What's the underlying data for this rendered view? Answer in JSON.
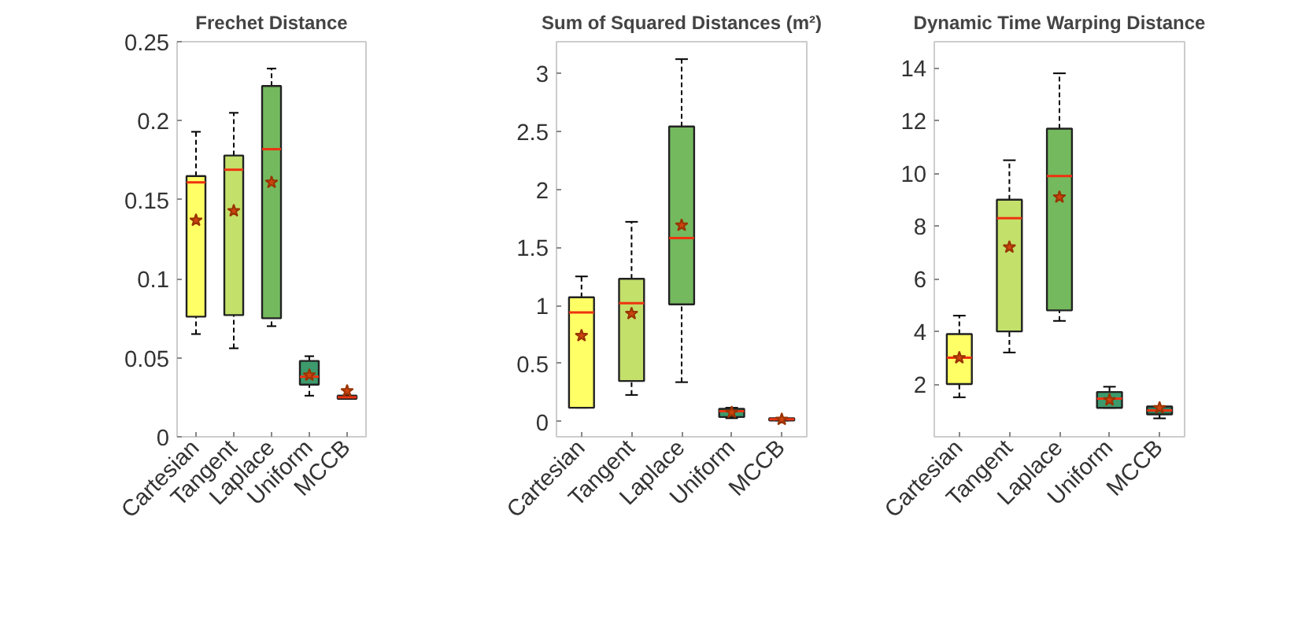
{
  "chart_data": [
    {
      "type": "box",
      "title": "Frechet Distance",
      "categories": [
        "Cartesian",
        "Tangent",
        "Laplace",
        "Uniform",
        "MCCB"
      ],
      "colors": [
        "#ffff66",
        "#c3e06a",
        "#74b95e",
        "#3d9a6c",
        "#2e7d5a"
      ],
      "ylim": [
        0,
        0.25
      ],
      "yticks": [
        0,
        0.05,
        0.1,
        0.15,
        0.2,
        0.25
      ],
      "grid": false,
      "marker": "star",
      "boxes": [
        {
          "low": 0.065,
          "q1": 0.076,
          "median": 0.161,
          "q3": 0.165,
          "high": 0.193,
          "mean": 0.137
        },
        {
          "low": 0.056,
          "q1": 0.077,
          "median": 0.169,
          "q3": 0.178,
          "high": 0.205,
          "mean": 0.143
        },
        {
          "low": 0.07,
          "q1": 0.075,
          "median": 0.182,
          "q3": 0.222,
          "high": 0.233,
          "mean": 0.161
        },
        {
          "low": 0.026,
          "q1": 0.033,
          "median": 0.038,
          "q3": 0.048,
          "high": 0.051,
          "mean": 0.039
        },
        {
          "low": 0.024,
          "q1": 0.024,
          "median": 0.025,
          "q3": 0.026,
          "high": 0.026,
          "mean": 0.029
        }
      ]
    },
    {
      "type": "box",
      "title": "Sum of Squared Distances (m²)",
      "categories": [
        "Cartesian",
        "Tangent",
        "Laplace",
        "Uniform",
        "MCCB"
      ],
      "colors": [
        "#ffff66",
        "#c3e06a",
        "#74b95e",
        "#3d9a6c",
        "#2e7d5a"
      ],
      "ylim": [
        -0.13,
        3.27
      ],
      "yticks": [
        0,
        0.5,
        1,
        1.5,
        2,
        2.5,
        3
      ],
      "grid": false,
      "marker": "star",
      "boxes": [
        {
          "low": 0.12,
          "q1": 0.12,
          "median": 0.94,
          "q3": 1.07,
          "high": 1.25,
          "mean": 0.74
        },
        {
          "low": 0.23,
          "q1": 0.35,
          "median": 1.02,
          "q3": 1.23,
          "high": 1.72,
          "mean": 0.93
        },
        {
          "low": 0.34,
          "q1": 1.01,
          "median": 1.58,
          "q3": 2.54,
          "high": 3.12,
          "mean": 1.69
        },
        {
          "low": 0.03,
          "q1": 0.04,
          "median": 0.09,
          "q3": 0.11,
          "high": 0.12,
          "mean": 0.08
        },
        {
          "low": 0.01,
          "q1": 0.01,
          "median": 0.02,
          "q3": 0.03,
          "high": 0.03,
          "mean": 0.02
        }
      ]
    },
    {
      "type": "box",
      "title": "Dynamic Time Warping Distance",
      "categories": [
        "Cartesian",
        "Tangent",
        "Laplace",
        "Uniform",
        "MCCB"
      ],
      "colors": [
        "#ffff66",
        "#c3e06a",
        "#74b95e",
        "#3d9a6c",
        "#2e7d5a"
      ],
      "ylim": [
        0,
        15
      ],
      "yticks": [
        2,
        4,
        6,
        8,
        10,
        12,
        14
      ],
      "grid": false,
      "marker": "star",
      "boxes": [
        {
          "low": 1.5,
          "q1": 2.0,
          "median": 3.0,
          "q3": 3.9,
          "high": 4.6,
          "mean": 3.0
        },
        {
          "low": 3.2,
          "q1": 4.0,
          "median": 8.3,
          "q3": 9.0,
          "high": 10.5,
          "mean": 7.2
        },
        {
          "low": 4.4,
          "q1": 4.8,
          "median": 9.9,
          "q3": 11.7,
          "high": 13.8,
          "mean": 9.1
        },
        {
          "low": 1.1,
          "q1": 1.1,
          "median": 1.45,
          "q3": 1.7,
          "high": 1.9,
          "mean": 1.4
        },
        {
          "low": 0.7,
          "q1": 0.85,
          "median": 1.0,
          "q3": 1.15,
          "high": 1.15,
          "mean": 1.1
        }
      ]
    }
  ]
}
